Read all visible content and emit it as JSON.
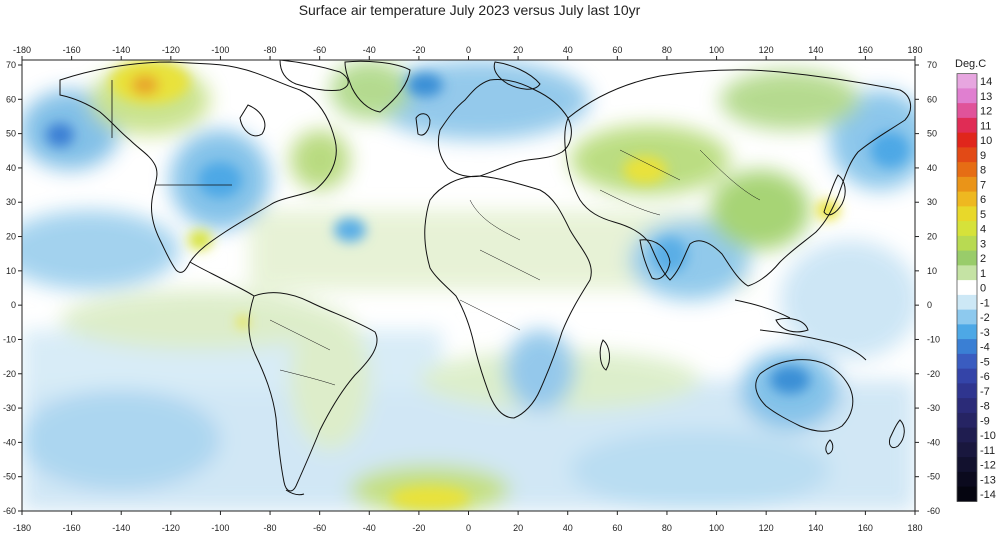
{
  "title": "Surface air temperature July 2023 versus July last 10yr",
  "map": {
    "x_ticks": [
      "-180",
      "-160",
      "-140",
      "-120",
      "-100",
      "-80",
      "-60",
      "-40",
      "-20",
      "0",
      "20",
      "40",
      "60",
      "80",
      "100",
      "120",
      "140",
      "160",
      "180"
    ],
    "y_ticks": [
      "70",
      "60",
      "50",
      "40",
      "30",
      "20",
      "10",
      "0",
      "-10",
      "-20",
      "-30",
      "-40",
      "-50",
      "-60"
    ],
    "colors": {
      "ocean_base": "#ffffff",
      "light_blue": "#cfe6f5",
      "mid_blue": "#7fc0e8",
      "deep_blue": "#3a8fd6",
      "light_green": "#d7ebb8",
      "mid_green": "#a6d27a",
      "yellow": "#e9e23a",
      "orange": "#e8a62a",
      "coast": "#111111"
    }
  },
  "legend": {
    "title": "Deg.C",
    "labels": [
      "14",
      "13",
      "12",
      "11",
      "10",
      "9",
      "8",
      "7",
      "6",
      "5",
      "4",
      "3",
      "2",
      "1",
      "0",
      "-1",
      "-2",
      "-3",
      "-4",
      "-5",
      "-6",
      "-7",
      "-8",
      "-9",
      "-10",
      "-11",
      "-12",
      "-13",
      "-14"
    ],
    "colors": [
      "#e7a6e0",
      "#e07fd0",
      "#e0539a",
      "#e02c55",
      "#e0261c",
      "#e24a16",
      "#e66d14",
      "#ea9418",
      "#eeb820",
      "#e8d82a",
      "#d6e23a",
      "#b8da52",
      "#99cc6a",
      "#c5e3a4",
      "#ffffff",
      "#cde8f6",
      "#8dc9ee",
      "#4da8e6",
      "#3a7fd4",
      "#3a5cc0",
      "#3444a8",
      "#2f358f",
      "#2b2b78",
      "#262463",
      "#1f1d50",
      "#19173e",
      "#12112e",
      "#0b0a1e",
      "#050510"
    ]
  }
}
